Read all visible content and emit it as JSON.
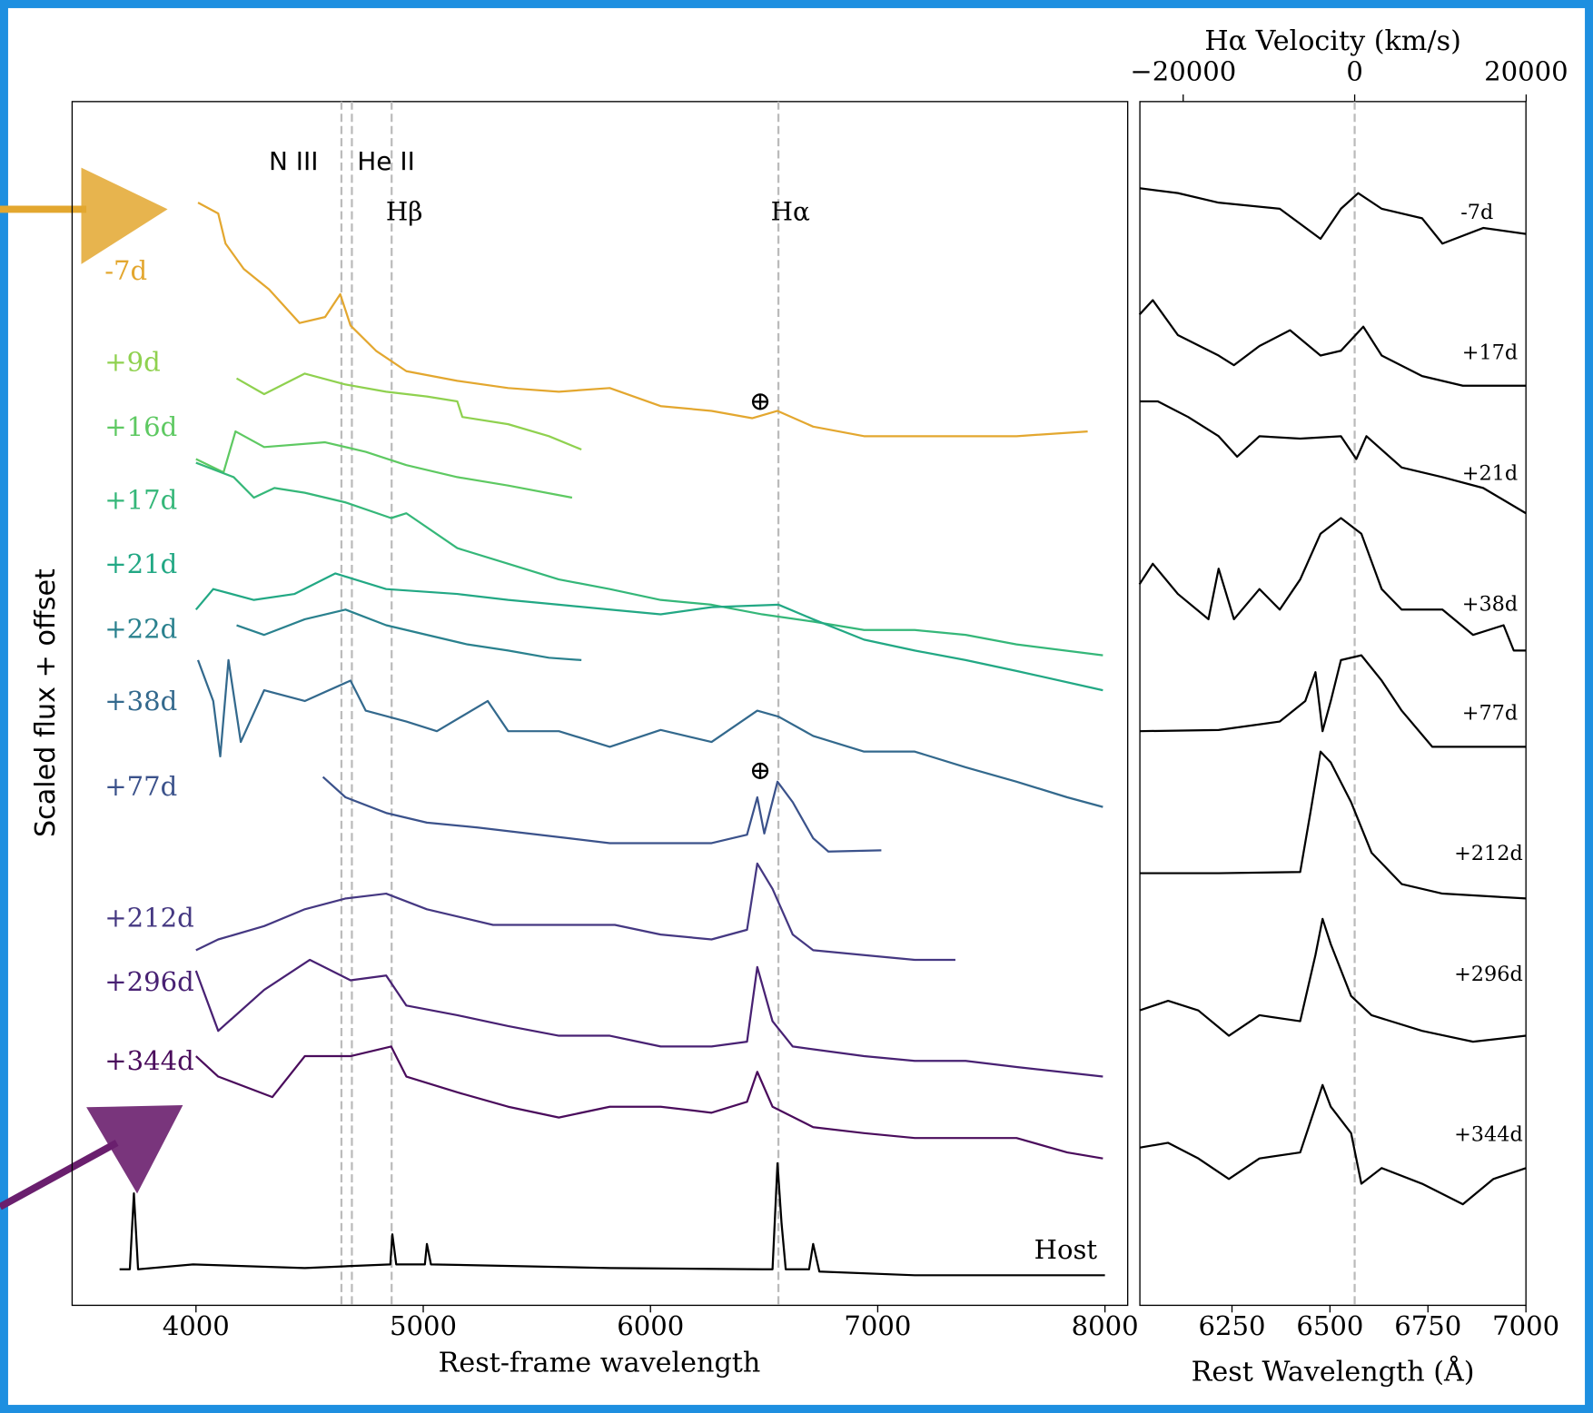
{
  "chart_data": [
    {
      "type": "line",
      "xlabel": "Rest-frame wavelength",
      "ylabel": "Scaled flux + offset",
      "xlim": [
        3455,
        8100
      ],
      "xticks": [
        4000,
        5000,
        6000,
        7000,
        8000
      ],
      "ylim": [
        0,
        100
      ],
      "lines": [
        {
          "x": 4640,
          "label": "N III"
        },
        {
          "x": 4686,
          "label": "He II"
        },
        {
          "x": 4861,
          "label": "Hβ"
        },
        {
          "x": 6563,
          "label": "Hα"
        }
      ],
      "markers": [
        {
          "x": 6483,
          "y": 75.0,
          "label": "⊕"
        },
        {
          "x": 6483,
          "y": 44.3,
          "label": "⊕"
        }
      ],
      "series": [
        {
          "name": "-7d",
          "color": "#e3a72f",
          "x": [
            4009,
            4098,
            4130,
            4210,
            4322,
            4456,
            4568,
            4635,
            4680,
            4792,
            4926,
            5150,
            5374,
            5597,
            5821,
            6045,
            6269,
            6447,
            6559,
            6716,
            6940,
            7387,
            7611,
            7924
          ],
          "values": [
            91.6,
            90.7,
            88.2,
            86.1,
            84.4,
            81.6,
            82.1,
            84.0,
            81.4,
            79.3,
            77.6,
            76.8,
            76.2,
            75.9,
            76.2,
            74.7,
            74.3,
            73.7,
            74.3,
            73.0,
            72.2,
            72.2,
            72.2,
            72.6
          ]
        },
        {
          "name": "+9d",
          "color": "#8fd14f",
          "x": [
            4179,
            4300,
            4479,
            4658,
            4837,
            5016,
            5150,
            5172,
            5374,
            5553,
            5696
          ],
          "values": [
            77.0,
            75.7,
            77.4,
            76.5,
            75.9,
            75.5,
            75.1,
            73.8,
            73.2,
            72.2,
            71.1
          ]
        },
        {
          "name": "+16d",
          "color": "#5ec962",
          "x": [
            4000,
            4121,
            4174,
            4300,
            4568,
            4747,
            4926,
            5150,
            5374,
            5655
          ],
          "values": [
            70.3,
            69.2,
            72.6,
            71.3,
            71.7,
            70.9,
            69.8,
            68.8,
            68.1,
            67.1
          ]
        },
        {
          "name": "+17d",
          "color": "#35b779",
          "x": [
            4000,
            4166,
            4255,
            4345,
            4479,
            4658,
            4859,
            4926,
            5150,
            5374,
            5597,
            5821,
            6045,
            6269,
            6492,
            6716,
            6940,
            7163,
            7387,
            7611,
            7991
          ],
          "values": [
            70.0,
            68.8,
            67.1,
            67.9,
            67.5,
            66.7,
            65.4,
            65.8,
            62.9,
            61.6,
            60.3,
            59.5,
            58.6,
            58.2,
            57.4,
            56.8,
            56.1,
            56.1,
            55.7,
            54.9,
            54.0
          ]
        },
        {
          "name": "+21d",
          "color": "#22a884",
          "x": [
            4000,
            4076,
            4255,
            4434,
            4613,
            4837,
            5150,
            5374,
            5597,
            5821,
            6045,
            6269,
            6564,
            6716,
            6940,
            7163,
            7387,
            7611,
            7991
          ],
          "values": [
            57.8,
            59.5,
            58.6,
            59.1,
            60.8,
            59.5,
            59.1,
            58.6,
            58.2,
            57.8,
            57.4,
            58.0,
            58.2,
            57.0,
            55.3,
            54.4,
            53.6,
            52.7,
            51.1
          ]
        },
        {
          "name": "+22d",
          "color": "#2a818e",
          "x": [
            4179,
            4300,
            4479,
            4658,
            4837,
            5016,
            5195,
            5374,
            5553,
            5696
          ],
          "values": [
            56.5,
            55.7,
            57.0,
            57.8,
            56.5,
            55.7,
            54.9,
            54.4,
            53.8,
            53.6
          ]
        },
        {
          "name": "+38d",
          "color": "#33698d",
          "x": [
            4009,
            4076,
            4107,
            4143,
            4197,
            4300,
            4479,
            4680,
            4747,
            4926,
            5060,
            5284,
            5374,
            5597,
            5821,
            6045,
            6269,
            6470,
            6564,
            6716,
            6940,
            7163,
            7387,
            7611,
            7834,
            7991
          ],
          "values": [
            53.6,
            50.2,
            45.6,
            53.6,
            46.8,
            51.1,
            50.2,
            51.9,
            49.4,
            48.5,
            47.7,
            50.2,
            47.7,
            47.7,
            46.4,
            47.8,
            46.8,
            49.4,
            48.9,
            47.3,
            46.0,
            46.0,
            44.7,
            43.5,
            42.2,
            41.4
          ]
        },
        {
          "name": "+77d",
          "color": "#3b528b",
          "x": [
            4559,
            4658,
            4837,
            5016,
            5239,
            5463,
            5642,
            5821,
            6045,
            6269,
            6425,
            6470,
            6501,
            6559,
            6626,
            6716,
            6783,
            7016
          ],
          "values": [
            43.9,
            42.2,
            40.9,
            40.1,
            39.7,
            39.2,
            38.8,
            38.4,
            38.4,
            38.4,
            39.1,
            42.2,
            39.2,
            43.5,
            41.8,
            38.8,
            37.7,
            37.8
          ]
        },
        {
          "name": "+212d",
          "color": "#453882",
          "x": [
            4000,
            4098,
            4300,
            4479,
            4658,
            4837,
            5016,
            5307,
            5843,
            6045,
            6269,
            6425,
            6470,
            6537,
            6626,
            6716,
            6940,
            7163,
            7342
          ],
          "values": [
            29.5,
            30.4,
            31.5,
            32.9,
            33.8,
            34.2,
            32.9,
            31.6,
            31.6,
            30.8,
            30.4,
            31.2,
            36.7,
            34.6,
            30.8,
            29.5,
            29.1,
            28.7,
            28.7
          ]
        },
        {
          "name": "+296d",
          "color": "#482173",
          "x": [
            4000,
            4098,
            4300,
            4501,
            4680,
            4837,
            4926,
            5150,
            5374,
            5597,
            5821,
            6045,
            6269,
            6425,
            6470,
            6537,
            6626,
            6940,
            7163,
            7387,
            7611,
            7991
          ],
          "values": [
            27.8,
            22.8,
            26.2,
            28.7,
            27.0,
            27.4,
            24.9,
            24.1,
            23.2,
            22.4,
            22.4,
            21.5,
            21.5,
            21.9,
            28.1,
            23.6,
            21.5,
            20.7,
            20.3,
            20.3,
            19.8,
            19.0
          ]
        },
        {
          "name": "+344d",
          "color": "#4a0c5c",
          "x": [
            4000,
            4098,
            4336,
            4479,
            4680,
            4859,
            4926,
            5150,
            5374,
            5597,
            5821,
            6045,
            6269,
            6425,
            6470,
            6537,
            6716,
            6940,
            7163,
            7387,
            7611,
            7834,
            7991
          ],
          "values": [
            20.7,
            19.0,
            17.3,
            20.7,
            20.7,
            21.5,
            19.0,
            17.7,
            16.5,
            15.6,
            16.5,
            16.5,
            16.0,
            16.9,
            19.4,
            16.5,
            14.8,
            14.3,
            13.9,
            13.9,
            13.9,
            12.7,
            12.2
          ]
        },
        {
          "name": "Host",
          "color": "#000000",
          "x": [
            3664,
            3709,
            3727,
            3745,
            3987,
            4479,
            4855,
            4864,
            4881,
            5007,
            5016,
            5034,
            5821,
            6492,
            6537,
            6559,
            6577,
            6595,
            6698,
            6716,
            6743,
            7163,
            8000
          ],
          "values": [
            3.0,
            3.0,
            9.3,
            3.0,
            3.4,
            3.1,
            3.4,
            5.9,
            3.4,
            3.4,
            5.1,
            3.4,
            3.1,
            3.0,
            3.0,
            11.8,
            6.8,
            3.0,
            3.0,
            5.1,
            2.8,
            2.5,
            2.5
          ]
        }
      ]
    },
    {
      "type": "line",
      "xlabel": "Rest Wavelength (Å)",
      "x2label": "Hα Velocity (km/s)",
      "xlim": [
        6015,
        7000
      ],
      "xticks": [
        6250,
        6500,
        6750,
        7000
      ],
      "x2lim": [
        -25050,
        19975
      ],
      "x2ticks": [
        {
          "value": -20000,
          "label": "−20000"
        },
        0,
        20000
      ],
      "ylim": [
        0,
        100
      ],
      "lines": [
        {
          "x": 6563
        }
      ],
      "series": [
        {
          "name": "-7d",
          "color": "#000000",
          "x": [
            6014,
            6112,
            6216,
            6372,
            6476,
            6528,
            6572,
            6632,
            6735,
            6787,
            6891,
            7000
          ],
          "values": [
            92.8,
            92.4,
            91.6,
            91.1,
            88.6,
            91.1,
            92.4,
            91.1,
            90.3,
            88.2,
            89.5,
            89.0
          ]
        },
        {
          "name": "+17d",
          "color": "#000000",
          "x": [
            6014,
            6048,
            6112,
            6216,
            6255,
            6320,
            6398,
            6476,
            6528,
            6585,
            6632,
            6735,
            6839,
            7000
          ],
          "values": [
            82.3,
            83.5,
            80.6,
            78.9,
            78.1,
            79.7,
            81.0,
            78.9,
            79.3,
            81.3,
            78.9,
            77.2,
            76.4,
            76.4
          ]
        },
        {
          "name": "+21d",
          "color": "#000000",
          "x": [
            6014,
            6061,
            6138,
            6216,
            6263,
            6320,
            6424,
            6528,
            6567,
            6593,
            6683,
            6787,
            6891,
            7000
          ],
          "values": [
            75.1,
            75.1,
            73.8,
            72.2,
            70.5,
            72.2,
            72.0,
            72.2,
            70.3,
            72.2,
            69.6,
            68.8,
            67.9,
            65.8
          ]
        },
        {
          "name": "+38d",
          "color": "#000000",
          "x": [
            6014,
            6048,
            6112,
            6190,
            6216,
            6255,
            6320,
            6372,
            6424,
            6476,
            6528,
            6580,
            6632,
            6683,
            6787,
            6865,
            6943,
            6969,
            7000
          ],
          "values": [
            59.9,
            61.6,
            59.1,
            57.0,
            61.2,
            57.0,
            59.5,
            57.8,
            60.3,
            64.1,
            65.4,
            64.1,
            59.5,
            57.8,
            57.8,
            55.7,
            56.5,
            54.4,
            54.4
          ]
        },
        {
          "name": "+77d",
          "color": "#000000",
          "x": [
            6014,
            6216,
            6372,
            6437,
            6463,
            6481,
            6502,
            6528,
            6580,
            6632,
            6683,
            6761,
            6865,
            7000
          ],
          "values": [
            47.7,
            47.8,
            48.5,
            50.2,
            52.6,
            47.7,
            50.2,
            53.6,
            54.0,
            51.9,
            49.4,
            46.4,
            46.4,
            46.4
          ]
        },
        {
          "name": "+212d",
          "color": "#000000",
          "x": [
            6014,
            6216,
            6424,
            6450,
            6476,
            6502,
            6554,
            6606,
            6683,
            6787,
            7000
          ],
          "values": [
            35.9,
            35.9,
            36.0,
            40.9,
            46.0,
            45.1,
            41.8,
            37.6,
            35.0,
            34.2,
            33.8
          ]
        },
        {
          "name": "+296d",
          "color": "#000000",
          "x": [
            6014,
            6087,
            6164,
            6242,
            6320,
            6424,
            6463,
            6481,
            6502,
            6554,
            6606,
            6735,
            6865,
            7000
          ],
          "values": [
            24.5,
            25.3,
            24.5,
            22.4,
            24.1,
            23.6,
            29.1,
            32.1,
            30.0,
            25.7,
            24.1,
            22.8,
            21.9,
            22.4
          ]
        },
        {
          "name": "+344d",
          "color": "#000000",
          "x": [
            6014,
            6087,
            6164,
            6242,
            6320,
            6424,
            6463,
            6481,
            6502,
            6554,
            6580,
            6632,
            6735,
            6839,
            6917,
            7000
          ],
          "values": [
            13.1,
            13.5,
            12.2,
            10.5,
            12.2,
            12.7,
            16.5,
            18.3,
            16.5,
            14.3,
            10.1,
            11.4,
            10.1,
            8.4,
            10.5,
            11.4
          ]
        }
      ]
    }
  ]
}
